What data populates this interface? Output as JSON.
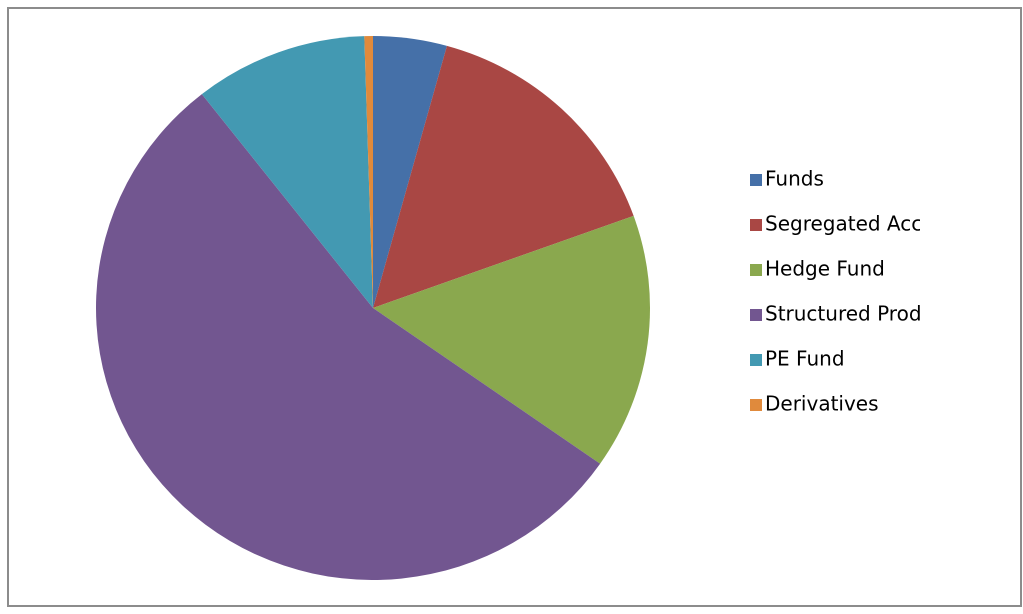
{
  "chart_data": {
    "type": "pie",
    "categories": [
      "Funds",
      "Segregated Accou",
      "Hedge Fund",
      "Structured Produ",
      "PE Fund",
      "Derivatives"
    ],
    "values": [
      4.3,
      15.2,
      15.2,
      54.7,
      10.1,
      0.5
    ],
    "colors": [
      "#4570a8",
      "#a94744",
      "#8aa84e",
      "#725690",
      "#4399b2",
      "#e08a3c"
    ],
    "legend": "right"
  }
}
